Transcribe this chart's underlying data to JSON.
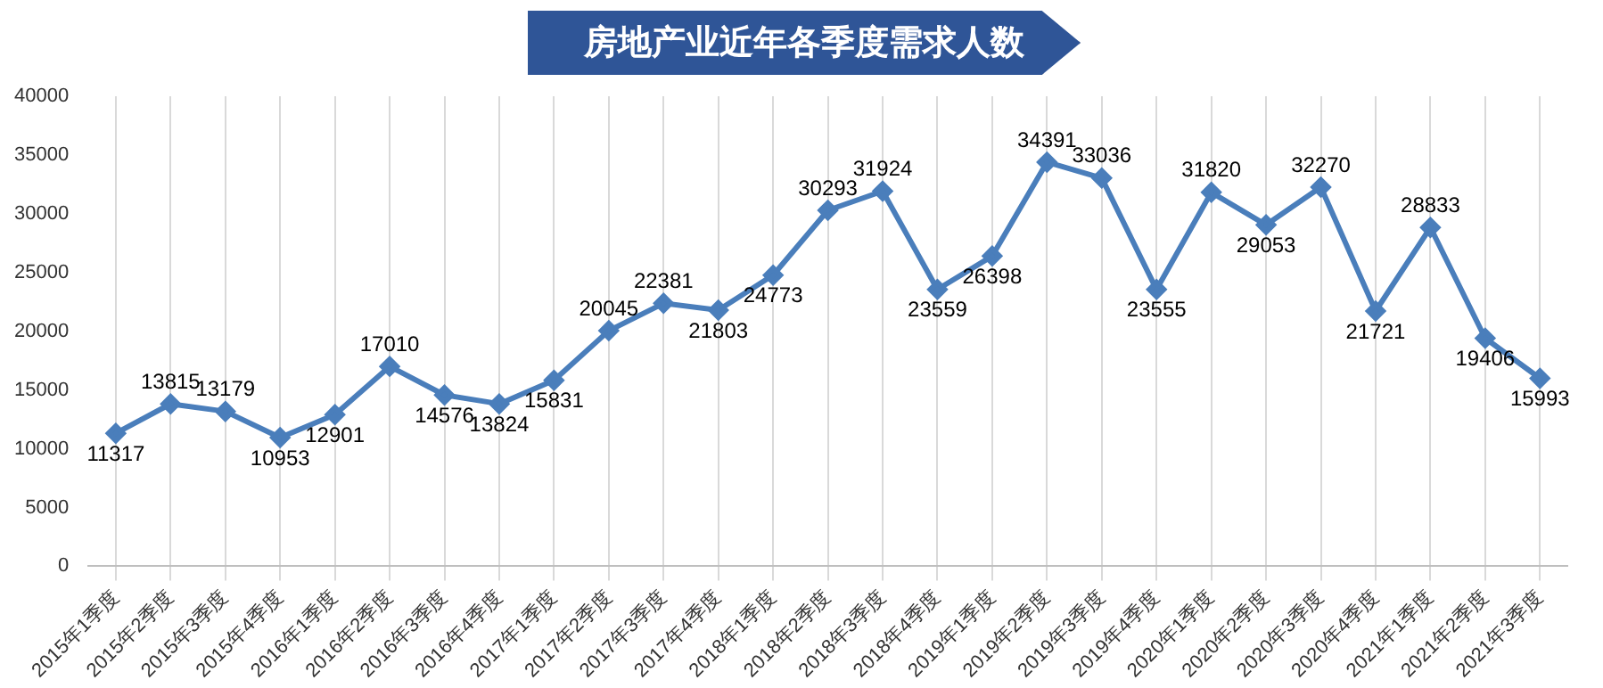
{
  "chart_data": {
    "type": "line",
    "title": "房地产业近年各季度需求人数",
    "categories": [
      "2015年1季度",
      "2015年2季度",
      "2015年3季度",
      "2015年4季度",
      "2016年1季度",
      "2016年2季度",
      "2016年3季度",
      "2016年4季度",
      "2017年1季度",
      "2017年2季度",
      "2017年3季度",
      "2017年4季度",
      "2018年1季度",
      "2018年2季度",
      "2018年3季度",
      "2018年4季度",
      "2019年1季度",
      "2019年2季度",
      "2019年3季度",
      "2019年4季度",
      "2020年1季度",
      "2020年2季度",
      "2020年3季度",
      "2020年4季度",
      "2021年1季度",
      "2021年2季度",
      "2021年3季度"
    ],
    "values": [
      11317,
      13815,
      13179,
      10953,
      12901,
      17010,
      14576,
      13824,
      15831,
      20045,
      22381,
      21803,
      24773,
      30293,
      31924,
      23559,
      26398,
      34391,
      33036,
      23555,
      31820,
      29053,
      32270,
      21721,
      28833,
      19406,
      15993
    ],
    "color": "#4a7ebb",
    "ylim": [
      0,
      40000
    ],
    "yticks": [
      0,
      5000,
      10000,
      15000,
      20000,
      25000,
      30000,
      35000,
      40000
    ],
    "grid": "x",
    "legend": false,
    "marker": "diamond",
    "line_style": "solid",
    "data_labels": true
  }
}
